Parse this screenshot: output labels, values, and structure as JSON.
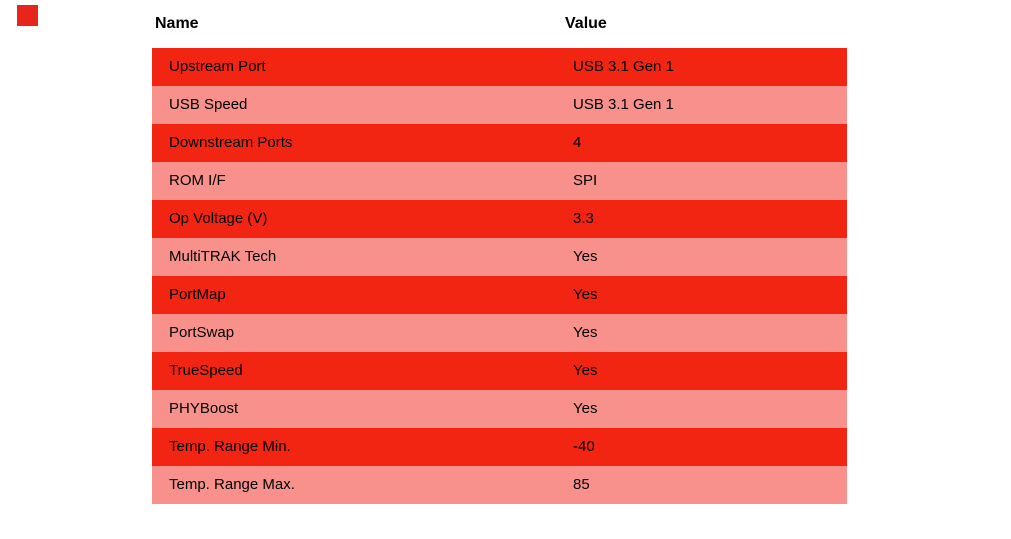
{
  "page": {
    "background": "#ffffff"
  },
  "colors": {
    "row_primary": "#f12511",
    "row_alt": "#f8918b",
    "text": "#000000",
    "placeholder_red": "#e6261c"
  },
  "image_placeholder": {
    "description": "small red square image placeholder at top-left"
  },
  "table": {
    "headers": {
      "name": "Name",
      "value": "Value"
    },
    "rows": [
      {
        "name": "Upstream Port",
        "value": "USB 3.1 Gen 1"
      },
      {
        "name": "USB Speed",
        "value": "USB 3.1 Gen 1"
      },
      {
        "name": "Downstream Ports",
        "value": "4"
      },
      {
        "name": "ROM I/F",
        "value": "SPI"
      },
      {
        "name": "Op Voltage (V)",
        "value": "3.3"
      },
      {
        "name": "MultiTRAK Tech",
        "value": "Yes"
      },
      {
        "name": "PortMap",
        "value": "Yes"
      },
      {
        "name": "PortSwap",
        "value": "Yes"
      },
      {
        "name": "TrueSpeed",
        "value": "Yes"
      },
      {
        "name": "PHYBoost",
        "value": "Yes"
      },
      {
        "name": "Temp. Range Min.",
        "value": "-40"
      },
      {
        "name": "Temp. Range Max.",
        "value": "85"
      }
    ]
  }
}
